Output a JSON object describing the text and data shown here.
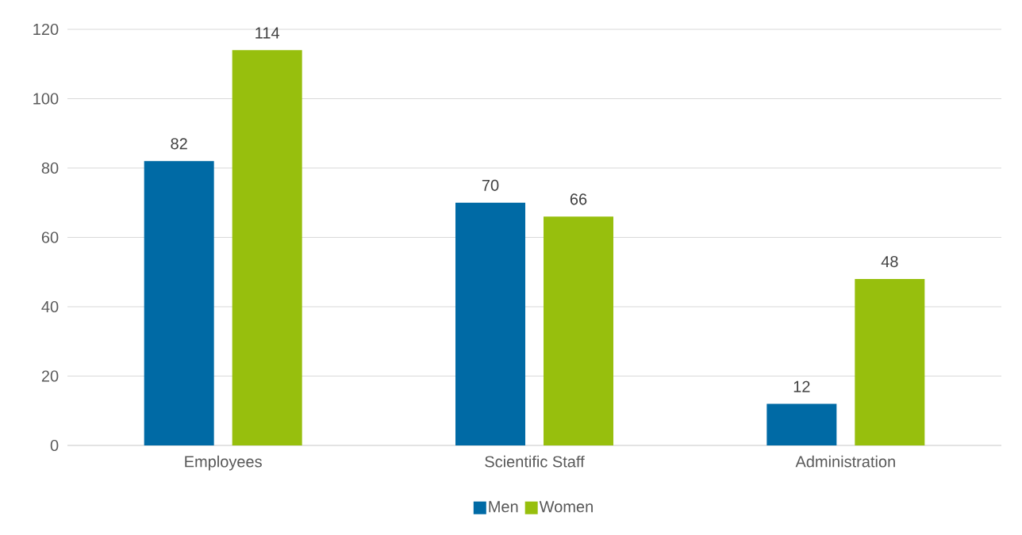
{
  "chart_data": {
    "type": "bar",
    "categories": [
      "Employees",
      "Scientific Staff",
      "Administration"
    ],
    "series": [
      {
        "name": "Men",
        "color": "#006aa5",
        "values": [
          82,
          70,
          12
        ]
      },
      {
        "name": "Women",
        "color": "#97bf0d",
        "values": [
          114,
          66,
          48
        ]
      }
    ],
    "ylim": [
      0,
      120
    ],
    "yticks": [
      0,
      20,
      40,
      60,
      80,
      100,
      120
    ],
    "grid": "y",
    "legend": "bottom",
    "data_labels": true
  }
}
